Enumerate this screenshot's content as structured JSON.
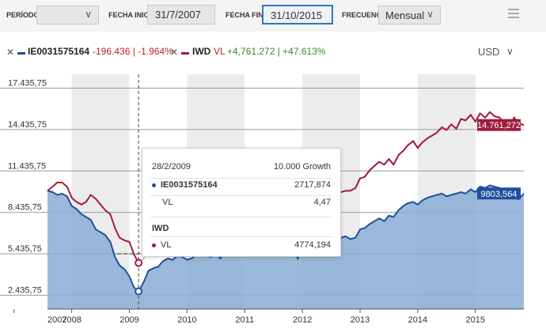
{
  "controls": {
    "period_label": "PERÍODO",
    "period_value": "",
    "start_label": "FECHA INICIO",
    "start_value": "31/7/2007",
    "end_label": "FECHA FINAL",
    "end_value": "31/10/2015",
    "freq_label": "FRECUENCIA",
    "freq_value": "Mensual"
  },
  "legend": {
    "s1_name": "IE0031575164",
    "s1_change": "-196.436 | -1.964%",
    "s2_name": "IWD",
    "s2_vl": "VL",
    "s2_change": "+4,761.272 | +47.613%",
    "currency": "USD"
  },
  "tooltip": {
    "date": "28/2/2009",
    "header_right": "10.000 Growth",
    "s1_name": "IE0031575164",
    "s1_value": "2717,874",
    "s1_vl_label": "VL",
    "s1_vl_value": "4,47",
    "s2_name": "IWD",
    "s2_vl_label": "VL",
    "s2_value": "4774,194"
  },
  "chart_data": {
    "type": "line",
    "title": "10.000 Growth",
    "ylim": [
      1435.75,
      18435.75
    ],
    "yticks": [
      2435.75,
      5435.75,
      8435.75,
      11435.75,
      14435.75,
      17435.75
    ],
    "ytick_labels": [
      "2.435,75",
      "5.435,75",
      "8.435,75",
      "11.435,75",
      "14.435,75",
      "17.435,75"
    ],
    "xticks": [
      2007,
      2008,
      2009,
      2010,
      2011,
      2012,
      2013,
      2014,
      2015
    ],
    "xlim": [
      2007.58,
      2015.84
    ],
    "reference_value": 5435.75,
    "hover_date": 2009.16,
    "series": [
      {
        "name": "IE0031575164",
        "color": "#1f4f9c",
        "fill": "#8fb0d6",
        "last_label": "9803,564",
        "x": [
          2007.58,
          2007.67,
          2007.75,
          2007.83,
          2007.92,
          2008.0,
          2008.08,
          2008.17,
          2008.25,
          2008.33,
          2008.42,
          2008.5,
          2008.58,
          2008.67,
          2008.75,
          2008.83,
          2008.92,
          2009.0,
          2009.08,
          2009.16,
          2009.25,
          2009.33,
          2009.42,
          2009.5,
          2009.58,
          2009.67,
          2009.75,
          2009.83,
          2009.92,
          2010.0,
          2010.08,
          2010.17,
          2010.25,
          2010.33,
          2010.42,
          2010.5,
          2010.58,
          2010.67,
          2010.75,
          2010.83,
          2010.92,
          2011.0,
          2011.08,
          2011.17,
          2011.25,
          2011.33,
          2011.42,
          2011.5,
          2011.58,
          2011.67,
          2011.75,
          2011.83,
          2011.92,
          2012.0,
          2012.08,
          2012.17,
          2012.25,
          2012.33,
          2012.42,
          2012.5,
          2012.58,
          2012.67,
          2012.75,
          2012.83,
          2012.92,
          2013.0,
          2013.08,
          2013.17,
          2013.25,
          2013.33,
          2013.42,
          2013.5,
          2013.58,
          2013.67,
          2013.75,
          2013.83,
          2013.92,
          2014.0,
          2014.08,
          2014.17,
          2014.25,
          2014.33,
          2014.42,
          2014.5,
          2014.58,
          2014.67,
          2014.75,
          2014.83,
          2014.92,
          2015.0,
          2015.08,
          2015.17,
          2015.25,
          2015.33,
          2015.42,
          2015.5,
          2015.58,
          2015.67,
          2015.75,
          2015.84
        ],
        "values": [
          10000,
          9900,
          9700,
          9800,
          9600,
          8900,
          8700,
          8300,
          8100,
          7900,
          7200,
          7000,
          6800,
          6300,
          5200,
          4600,
          4300,
          3800,
          3000,
          2718,
          3400,
          4200,
          4400,
          4500,
          4900,
          5100,
          5000,
          5300,
          5200,
          5000,
          5100,
          5400,
          5700,
          5300,
          5200,
          5500,
          5100,
          5600,
          5900,
          5800,
          6100,
          6500,
          6700,
          6800,
          6900,
          6800,
          6500,
          6300,
          5700,
          5600,
          6300,
          5900,
          5100,
          6000,
          6300,
          6700,
          6600,
          5900,
          6000,
          6200,
          6400,
          6600,
          6700,
          6500,
          6600,
          7200,
          7300,
          7600,
          7800,
          8000,
          7800,
          8200,
          8100,
          8600,
          8900,
          9100,
          9200,
          9000,
          9300,
          9500,
          9600,
          9700,
          9800,
          9600,
          9700,
          9800,
          9900,
          9800,
          10100,
          9900,
          10300,
          10200,
          10400,
          10300,
          10200,
          10000,
          9900,
          9500,
          9400,
          9803.564
        ]
      },
      {
        "name": "IWD",
        "color": "#a01c3d",
        "last_label": "14.761,272",
        "x": [
          2007.58,
          2007.67,
          2007.75,
          2007.83,
          2007.92,
          2008.0,
          2008.08,
          2008.17,
          2008.25,
          2008.33,
          2008.42,
          2008.5,
          2008.58,
          2008.67,
          2008.75,
          2008.83,
          2008.92,
          2009.0,
          2009.08,
          2009.16,
          2009.25,
          2009.33,
          2009.42,
          2009.5,
          2009.58,
          2009.67,
          2009.75,
          2009.83,
          2009.92,
          2010.0,
          2010.08,
          2010.17,
          2010.25,
          2010.33,
          2010.42,
          2010.5,
          2010.58,
          2010.67,
          2010.75,
          2010.83,
          2010.92,
          2011.0,
          2011.08,
          2011.17,
          2011.25,
          2011.33,
          2011.42,
          2011.5,
          2011.58,
          2011.67,
          2011.75,
          2011.83,
          2011.92,
          2012.0,
          2012.08,
          2012.17,
          2012.25,
          2012.33,
          2012.42,
          2012.5,
          2012.58,
          2012.67,
          2012.75,
          2012.83,
          2012.92,
          2013.0,
          2013.08,
          2013.17,
          2013.25,
          2013.33,
          2013.42,
          2013.5,
          2013.58,
          2013.67,
          2013.75,
          2013.83,
          2013.92,
          2014.0,
          2014.08,
          2014.17,
          2014.25,
          2014.33,
          2014.42,
          2014.5,
          2014.58,
          2014.67,
          2014.75,
          2014.83,
          2014.92,
          2015.0,
          2015.08,
          2015.17,
          2015.25,
          2015.33,
          2015.42,
          2015.5,
          2015.58,
          2015.67,
          2015.75,
          2015.84
        ],
        "values": [
          10000,
          10300,
          10600,
          10600,
          10300,
          9500,
          9200,
          9000,
          9200,
          9700,
          9400,
          9000,
          8600,
          8300,
          7300,
          6600,
          6400,
          6300,
          5400,
          4774,
          5100,
          5600,
          5700,
          5800,
          6000,
          6300,
          6200,
          6600,
          6800,
          6600,
          6700,
          7100,
          7400,
          6900,
          6700,
          7200,
          6800,
          7200,
          7600,
          7600,
          8000,
          8300,
          8600,
          8600,
          8700,
          8600,
          8400,
          8100,
          7500,
          6900,
          7800,
          7700,
          7800,
          8200,
          8700,
          9400,
          9300,
          8700,
          9200,
          9300,
          9600,
          9900,
          10000,
          10000,
          10200,
          10900,
          11000,
          11500,
          11800,
          12100,
          11900,
          12300,
          11900,
          12600,
          12900,
          13300,
          13600,
          13100,
          13500,
          13800,
          14000,
          14200,
          14600,
          14400,
          14800,
          14500,
          15200,
          15100,
          15500,
          15000,
          15600,
          15300,
          15700,
          15400,
          15300,
          14800,
          14500,
          15300,
          14900,
          14761.272
        ]
      }
    ]
  }
}
